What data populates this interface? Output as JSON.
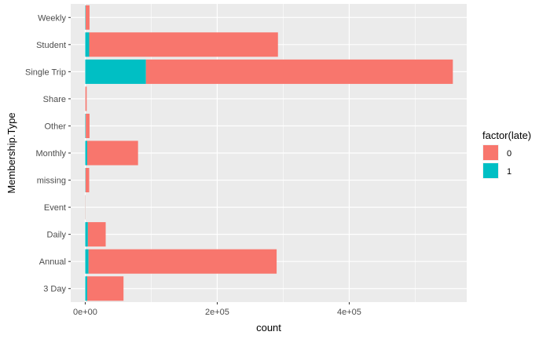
{
  "chart_data": {
    "type": "bar",
    "orientation": "horizontal",
    "stacked": true,
    "title": "",
    "xlabel": "count",
    "ylabel": "Membership.Type",
    "xlim": [
      -22000,
      578000
    ],
    "xticks": [
      {
        "value": 0,
        "label": "0e+00"
      },
      {
        "value": 200000,
        "label": "2e+05"
      },
      {
        "value": 400000,
        "label": "4e+05"
      }
    ],
    "categories": [
      "3 Day",
      "Annual",
      "Daily",
      "Event",
      "missing",
      "Monthly",
      "Other",
      "Share",
      "Single Trip",
      "Student",
      "Weekly"
    ],
    "series": [
      {
        "name": "1",
        "color": "#00bfc4",
        "values": [
          3000,
          5000,
          4000,
          200,
          500,
          3000,
          800,
          200,
          92000,
          6000,
          600
        ]
      },
      {
        "name": "0",
        "color": "#f8766d",
        "values": [
          55000,
          285000,
          27000,
          300,
          5500,
          77000,
          5700,
          2000,
          465000,
          286000,
          5900
        ]
      }
    ],
    "legend": {
      "title": "factor(late)",
      "position": "right",
      "order": [
        "0",
        "1"
      ]
    },
    "grid": true,
    "panel_background": "#ebebeb"
  }
}
